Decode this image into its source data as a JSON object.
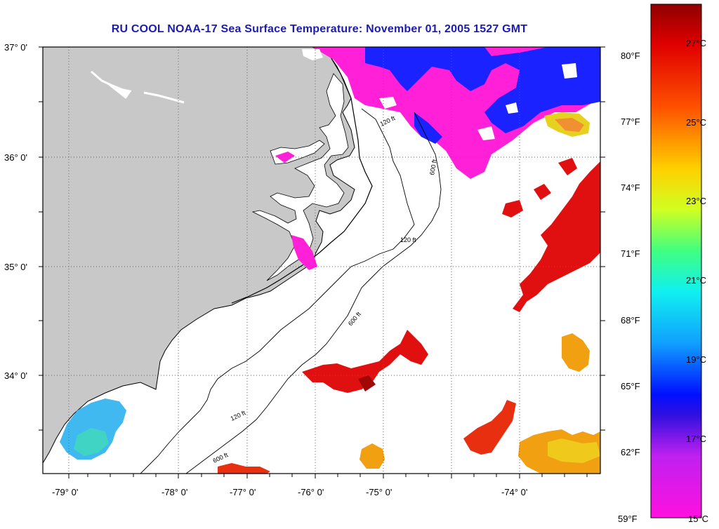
{
  "title": "RU COOL  NOAA-17  Sea Surface Temperature:  November 01, 2005 1527 GMT",
  "lat_labels": [
    "37° 0'",
    "36° 0'",
    "35° 0'",
    "34° 0'"
  ],
  "lon_labels": [
    "-79° 0'",
    "-78° 0'",
    "-77° 0'",
    "-76° 0'",
    "-75° 0'",
    "-74° 0'"
  ],
  "fahrenheit_labels": [
    "80°F",
    "77°F",
    "74°F",
    "71°F",
    "68°F",
    "65°F",
    "62°F",
    "59°F"
  ],
  "celsius_labels": [
    "27°C",
    "25°C",
    "23°C",
    "21°C",
    "19°C",
    "17°C",
    "15°C"
  ],
  "isobath_labels": [
    "120 ft",
    "600 ft"
  ],
  "colors": {
    "land": "#c8c8c8",
    "title": "#1c1cb0",
    "cold_magenta": "#ff20d8",
    "blue": "#1a22ff",
    "warm_red": "#e01010",
    "orange": "#f0a010",
    "cyan_green": "#30d0c0"
  }
}
